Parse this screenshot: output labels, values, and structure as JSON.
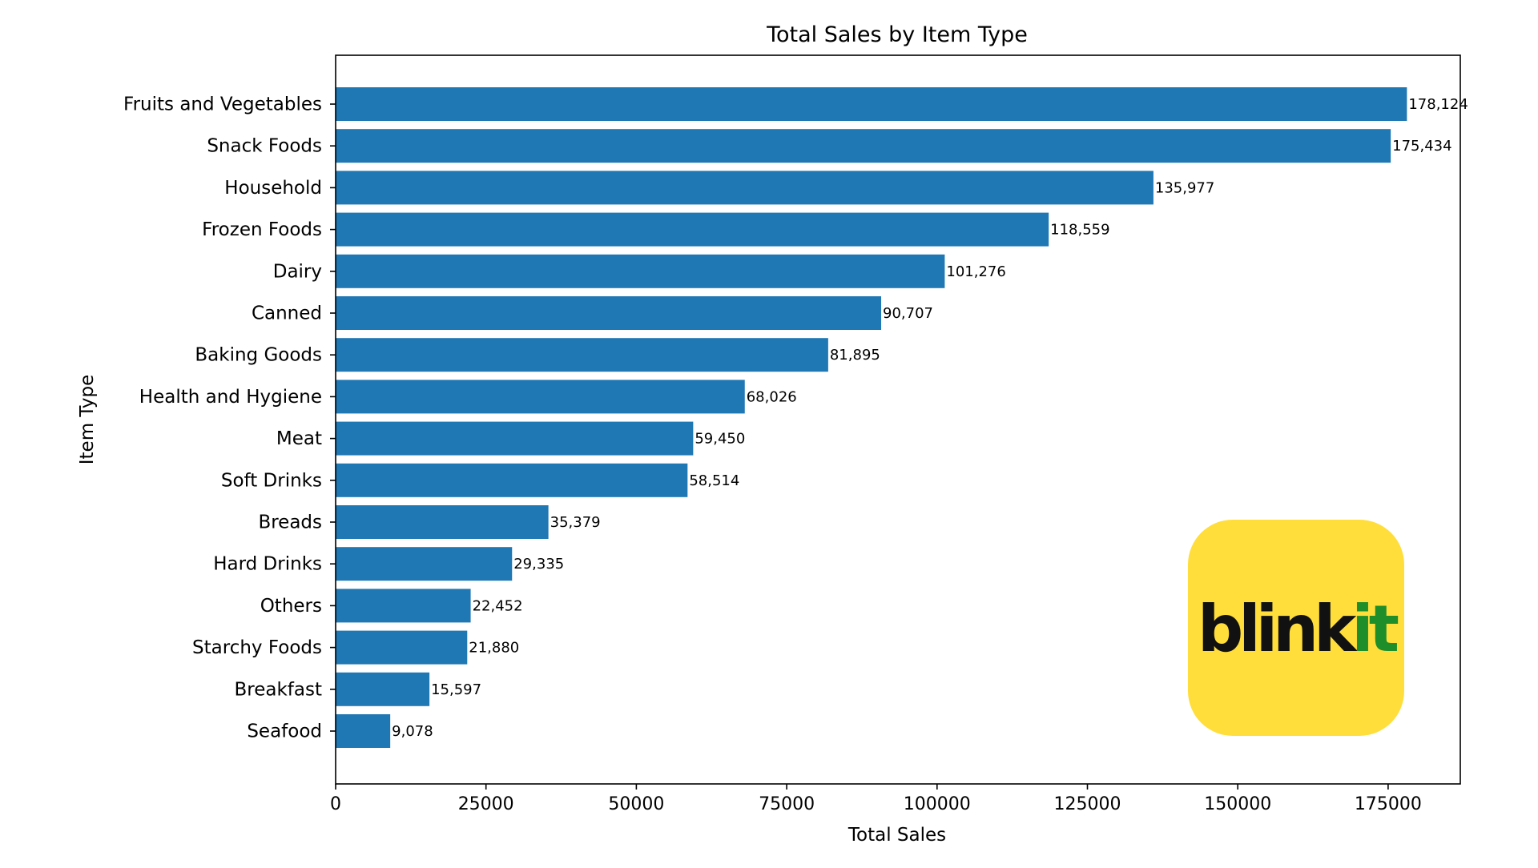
{
  "chart_data": {
    "type": "bar",
    "orientation": "horizontal",
    "title": "Total Sales by Item Type",
    "xlabel": "Total Sales",
    "ylabel": "Item Type",
    "xlim": [
      0,
      187000
    ],
    "xticks": [
      0,
      25000,
      50000,
      75000,
      100000,
      125000,
      150000,
      175000
    ],
    "xtick_labels": [
      "0",
      "25000",
      "50000",
      "75000",
      "100000",
      "125000",
      "150000",
      "175000"
    ],
    "categories": [
      "Fruits and Vegetables",
      "Snack Foods",
      "Household",
      "Frozen Foods",
      "Dairy",
      "Canned",
      "Baking Goods",
      "Health and Hygiene",
      "Meat",
      "Soft Drinks",
      "Breads",
      "Hard Drinks",
      "Others",
      "Starchy Foods",
      "Breakfast",
      "Seafood"
    ],
    "values": [
      178124,
      175434,
      135977,
      118559,
      101276,
      90707,
      81895,
      68026,
      59450,
      58514,
      35379,
      29335,
      22452,
      21880,
      15597,
      9078
    ],
    "value_labels": [
      "178,124",
      "175,434",
      "135,977",
      "118,559",
      "101,276",
      "90,707",
      "81,895",
      "68,026",
      "59,450",
      "58,514",
      "35,379",
      "29,335",
      "22,452",
      "21,880",
      "15,597",
      "9,078"
    ],
    "bar_color": "#1f77b4",
    "grid": false,
    "legend": "none"
  },
  "logo": {
    "text_main": "blink",
    "text_accent": "it",
    "background": "#ffde3b",
    "accent_color": "#1e8e2a"
  }
}
